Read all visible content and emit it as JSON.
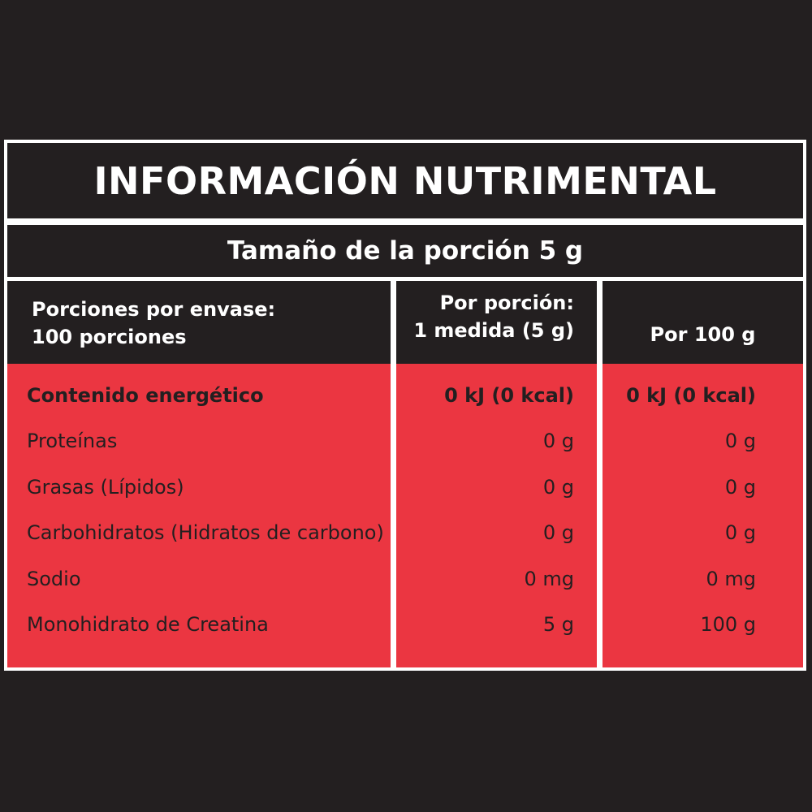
{
  "title": "INFORMACIÓN NUTRIMENTAL",
  "serving_size": "Tamaño de la porción 5 g",
  "header": {
    "servings_line1": "Porciones por envase:",
    "servings_line2": "100 porciones",
    "per_serving_line1": "Por porción:",
    "per_serving_line2": "1 medida (5 g)",
    "per_100g": "Por 100 g"
  },
  "rows": [
    {
      "name": "Contenido energético",
      "per_serving": "0 kJ (0 kcal)",
      "per_100g": "0 kJ (0 kcal)"
    },
    {
      "name": "Proteínas",
      "per_serving": "0 g",
      "per_100g": "0 g"
    },
    {
      "name": "Grasas (Lípidos)",
      "per_serving": "0 g",
      "per_100g": "0 g"
    },
    {
      "name": "Carbohidratos (Hidratos de carbono)",
      "per_serving": "0 g",
      "per_100g": "0 g"
    },
    {
      "name": "Sodio",
      "per_serving": "0 mg",
      "per_100g": "0 mg"
    },
    {
      "name": "Monohidrato de Creatina",
      "per_serving": "5 g",
      "per_100g": "100 g"
    }
  ],
  "colors": {
    "background": "#231f20",
    "accent_red": "#eb3641",
    "divider": "#ffffff"
  }
}
